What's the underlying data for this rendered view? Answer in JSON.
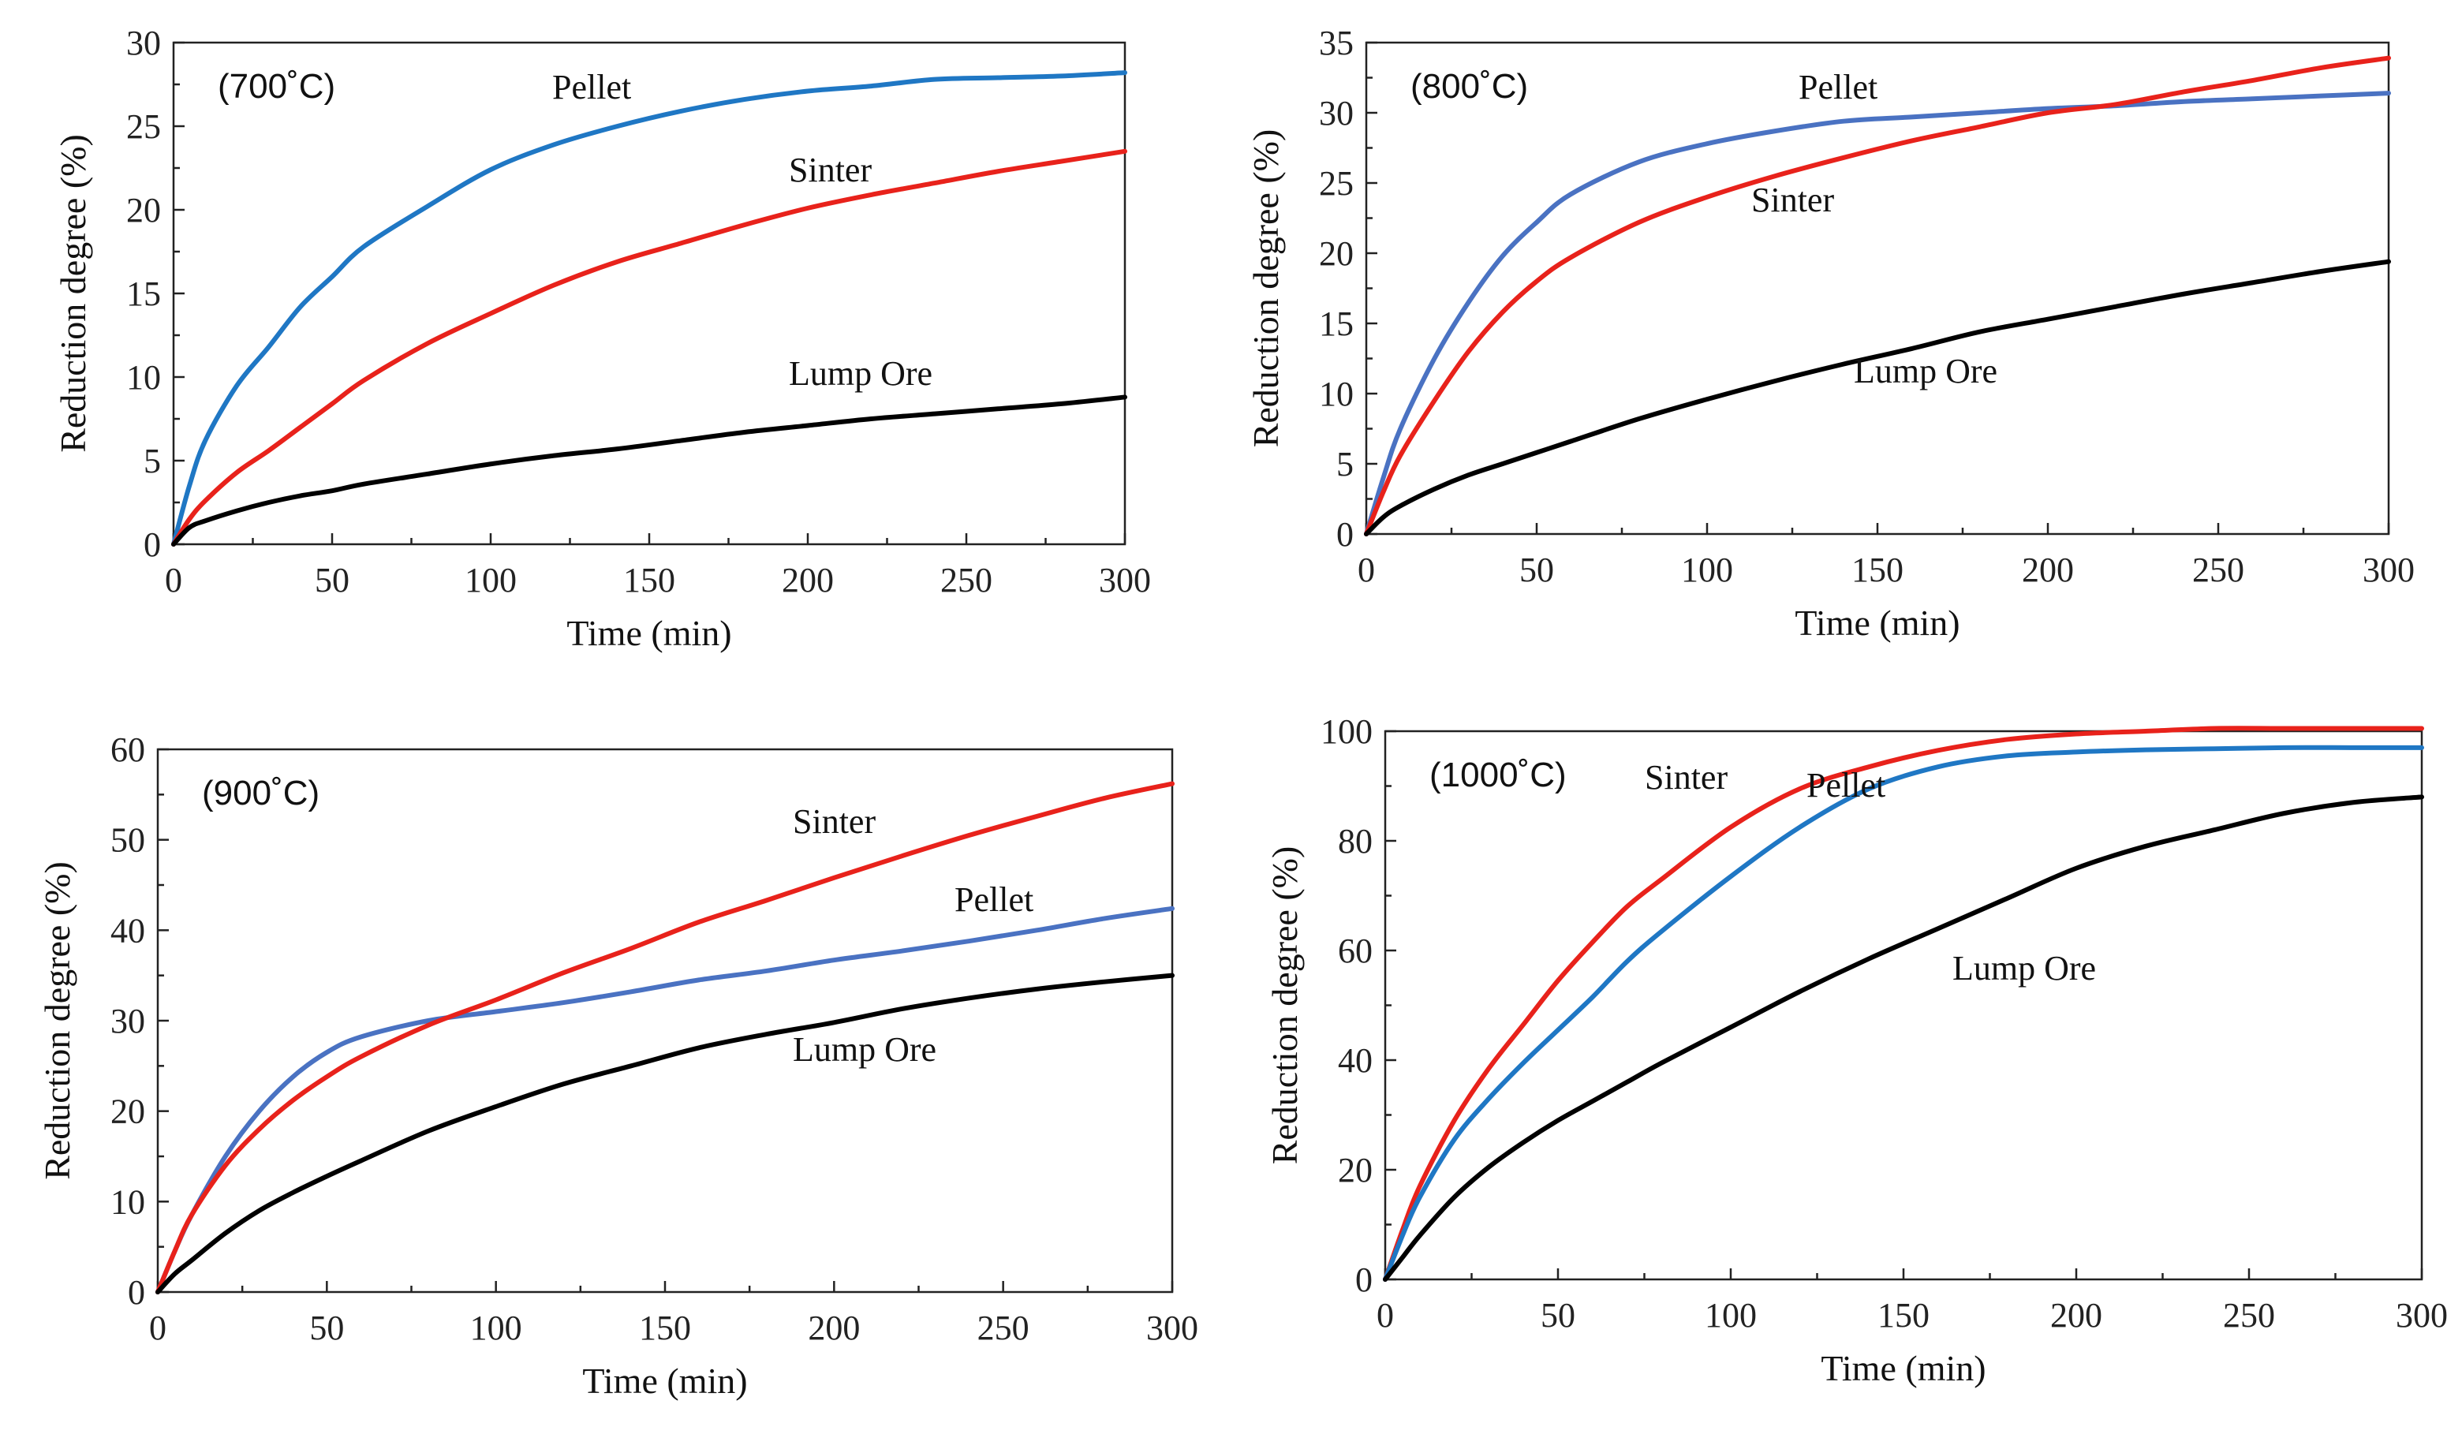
{
  "chart_data": [
    {
      "type": "line",
      "title": "(700˚C)",
      "xlabel": "Time (min)",
      "ylabel": "Reduction degree (%)",
      "xlim": [
        0,
        300
      ],
      "ylim": [
        0,
        30
      ],
      "xticks": [
        "0",
        "50",
        "100",
        "150",
        "200",
        "250",
        "300"
      ],
      "yticks": [
        "0",
        "5",
        "10",
        "15",
        "20",
        "25",
        "30"
      ],
      "x": [
        0,
        5,
        10,
        20,
        30,
        40,
        50,
        60,
        80,
        100,
        120,
        140,
        160,
        180,
        200,
        220,
        240,
        260,
        280,
        300
      ],
      "series": [
        {
          "name": "Pellet",
          "color": "#1f77c4",
          "values": [
            0,
            3.5,
            6.2,
            9.5,
            11.8,
            14.2,
            16.0,
            17.8,
            20.2,
            22.4,
            23.9,
            25.0,
            25.9,
            26.6,
            27.1,
            27.4,
            27.8,
            27.9,
            28.0,
            28.2
          ]
        },
        {
          "name": "Sinter",
          "color": "#e8221b",
          "values": [
            0,
            1.5,
            2.6,
            4.3,
            5.6,
            7.0,
            8.4,
            9.8,
            12.0,
            13.8,
            15.5,
            16.9,
            18.0,
            19.1,
            20.1,
            20.9,
            21.6,
            22.3,
            22.9,
            23.5
          ]
        },
        {
          "name": "Lump Ore",
          "color": "#000000",
          "values": [
            0,
            1.0,
            1.4,
            2.0,
            2.5,
            2.9,
            3.2,
            3.6,
            4.2,
            4.8,
            5.3,
            5.7,
            6.2,
            6.7,
            7.1,
            7.5,
            7.8,
            8.1,
            8.4,
            8.8
          ]
        }
      ]
    },
    {
      "type": "line",
      "title": "(800˚C)",
      "xlabel": "Time (min)",
      "ylabel": "Reduction degree (%)",
      "xlim": [
        0,
        300
      ],
      "ylim": [
        0,
        35
      ],
      "xticks": [
        "0",
        "50",
        "100",
        "150",
        "200",
        "250",
        "300"
      ],
      "yticks": [
        "0",
        "5",
        "10",
        "15",
        "20",
        "25",
        "30",
        "35"
      ],
      "x": [
        0,
        5,
        10,
        20,
        30,
        40,
        50,
        60,
        80,
        100,
        120,
        140,
        160,
        180,
        200,
        220,
        240,
        260,
        280,
        300
      ],
      "series": [
        {
          "name": "Pellet",
          "color": "#4a72c2",
          "values": [
            0,
            4.0,
            7.5,
            12.5,
            16.5,
            19.8,
            22.2,
            24.2,
            26.5,
            27.8,
            28.7,
            29.4,
            29.7,
            30.0,
            30.3,
            30.5,
            30.8,
            31.0,
            31.2,
            31.4
          ]
        },
        {
          "name": "Sinter",
          "color": "#e8221b",
          "values": [
            0,
            3.0,
            5.6,
            9.5,
            13.0,
            15.8,
            18.0,
            19.7,
            22.2,
            24.0,
            25.5,
            26.8,
            28.0,
            29.0,
            30.0,
            30.6,
            31.5,
            32.3,
            33.2,
            33.9
          ]
        },
        {
          "name": "Lump Ore",
          "color": "#000000",
          "values": [
            0,
            1.2,
            2.0,
            3.2,
            4.2,
            5.0,
            5.8,
            6.6,
            8.2,
            9.6,
            10.9,
            12.1,
            13.2,
            14.4,
            15.3,
            16.2,
            17.1,
            17.9,
            18.7,
            19.4
          ]
        }
      ]
    },
    {
      "type": "line",
      "title": "(900˚C)",
      "xlabel": "Time (min)",
      "ylabel": "Reduction degree (%)",
      "xlim": [
        0,
        300
      ],
      "ylim": [
        0,
        60
      ],
      "xticks": [
        "0",
        "50",
        "100",
        "150",
        "200",
        "250",
        "300"
      ],
      "yticks": [
        "0",
        "10",
        "20",
        "30",
        "40",
        "50",
        "60"
      ],
      "x": [
        0,
        5,
        10,
        20,
        30,
        40,
        50,
        60,
        80,
        100,
        120,
        140,
        160,
        180,
        200,
        220,
        240,
        260,
        280,
        300
      ],
      "series": [
        {
          "name": "Pellet",
          "color": "#4a72c2",
          "values": [
            0,
            4.5,
            8.5,
            15.0,
            20.0,
            23.8,
            26.5,
            28.2,
            30.0,
            31.0,
            32.0,
            33.2,
            34.5,
            35.5,
            36.7,
            37.7,
            38.8,
            40.0,
            41.3,
            42.4
          ]
        },
        {
          "name": "Sinter",
          "color": "#e8221b",
          "values": [
            0,
            4.5,
            8.5,
            14.0,
            18.0,
            21.2,
            23.8,
            26.0,
            29.5,
            32.3,
            35.3,
            38.0,
            40.9,
            43.3,
            45.8,
            48.2,
            50.5,
            52.6,
            54.6,
            56.2
          ]
        },
        {
          "name": "Lump Ore",
          "color": "#000000",
          "values": [
            0,
            2.0,
            3.5,
            6.5,
            9.0,
            11.0,
            12.8,
            14.5,
            17.8,
            20.5,
            23.0,
            25.0,
            27.0,
            28.5,
            29.8,
            31.3,
            32.5,
            33.5,
            34.3,
            35.0
          ]
        }
      ]
    },
    {
      "type": "line",
      "title": "(1000˚C)",
      "xlabel": "Time (min)",
      "ylabel": "Reduction degree (%)",
      "xlim": [
        0,
        300
      ],
      "ylim": [
        0,
        100
      ],
      "xticks": [
        "0",
        "50",
        "100",
        "150",
        "200",
        "250",
        "300"
      ],
      "yticks": [
        "0",
        "20",
        "40",
        "60",
        "80",
        "100"
      ],
      "x": [
        0,
        5,
        10,
        20,
        30,
        40,
        50,
        60,
        70,
        80,
        100,
        120,
        140,
        160,
        180,
        200,
        220,
        240,
        260,
        280,
        300
      ],
      "series": [
        {
          "name": "Sinter",
          "color": "#e8221b",
          "values": [
            0,
            9,
            17,
            29,
            38.5,
            46.5,
            54.5,
            61.5,
            68,
            73,
            82.5,
            89.5,
            93.5,
            96.5,
            98.5,
            99.5,
            100,
            100.5,
            100.5,
            100.5,
            100.5
          ]
        },
        {
          "name": "Pellet",
          "color": "#1f77c4",
          "values": [
            0,
            8,
            15,
            25.5,
            33,
            39.5,
            45.5,
            51.5,
            58,
            63.5,
            73.5,
            82.5,
            89.5,
            93.5,
            95.5,
            96.2,
            96.6,
            96.8,
            97,
            97,
            97
          ]
        },
        {
          "name": "Lump Ore",
          "color": "#000000",
          "values": [
            0,
            4,
            8,
            15,
            20.5,
            25,
            29,
            32.5,
            36,
            39.5,
            46,
            52.5,
            58.5,
            64,
            69.5,
            75,
            79,
            82,
            85,
            87,
            88
          ]
        }
      ]
    }
  ]
}
